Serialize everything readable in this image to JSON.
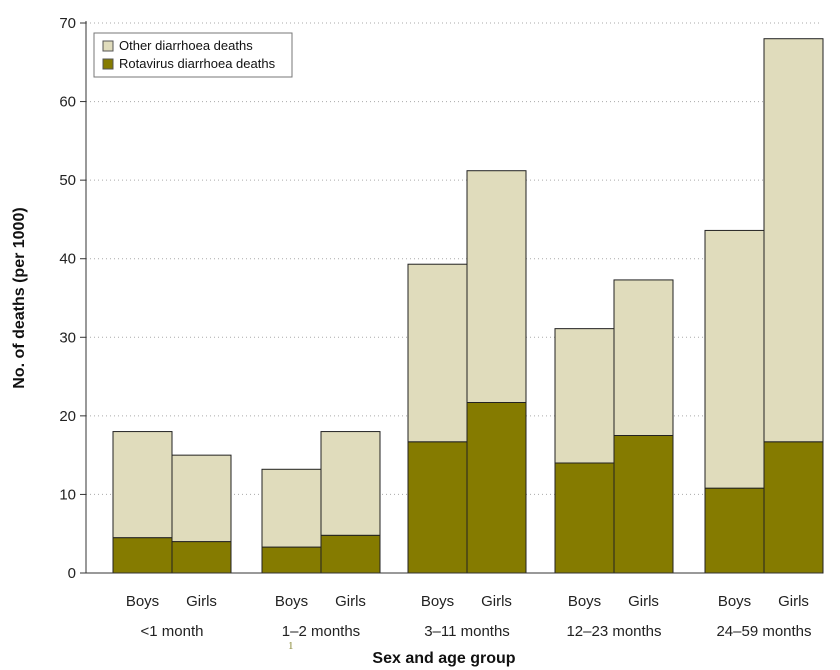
{
  "chart_data": {
    "type": "bar",
    "stacked": true,
    "xlabel": "Sex and age group",
    "ylabel": "No. of deaths (per 1000)",
    "ylim": [
      0,
      70
    ],
    "yticks": [
      0,
      10,
      20,
      30,
      40,
      50,
      60,
      70
    ],
    "grid": "horizontal dotted",
    "legend_position": "top-left",
    "groups": [
      {
        "label": "<1 month",
        "bars": [
          "Boys",
          "Girls"
        ]
      },
      {
        "label": "1–2 months",
        "bars": [
          "Boys",
          "Girls"
        ]
      },
      {
        "label": "3–11 months",
        "bars": [
          "Boys",
          "Girls"
        ]
      },
      {
        "label": "12–23 months",
        "bars": [
          "Boys",
          "Girls"
        ]
      },
      {
        "label": "24–59 months",
        "bars": [
          "Boys",
          "Girls"
        ]
      }
    ],
    "series": [
      {
        "name": "Rotavirus diarrhoea deaths",
        "color": "#857b00",
        "values": [
          4.5,
          4.0,
          3.3,
          4.8,
          16.7,
          21.7,
          14.0,
          17.5,
          10.8,
          16.7
        ]
      },
      {
        "name": "Other diarrhoea deaths",
        "color": "#e0dcbc",
        "values": [
          13.5,
          11.0,
          9.9,
          13.2,
          22.6,
          29.5,
          17.1,
          19.8,
          32.8,
          51.3
        ]
      }
    ],
    "annotations": [
      {
        "text": "1"
      }
    ]
  }
}
